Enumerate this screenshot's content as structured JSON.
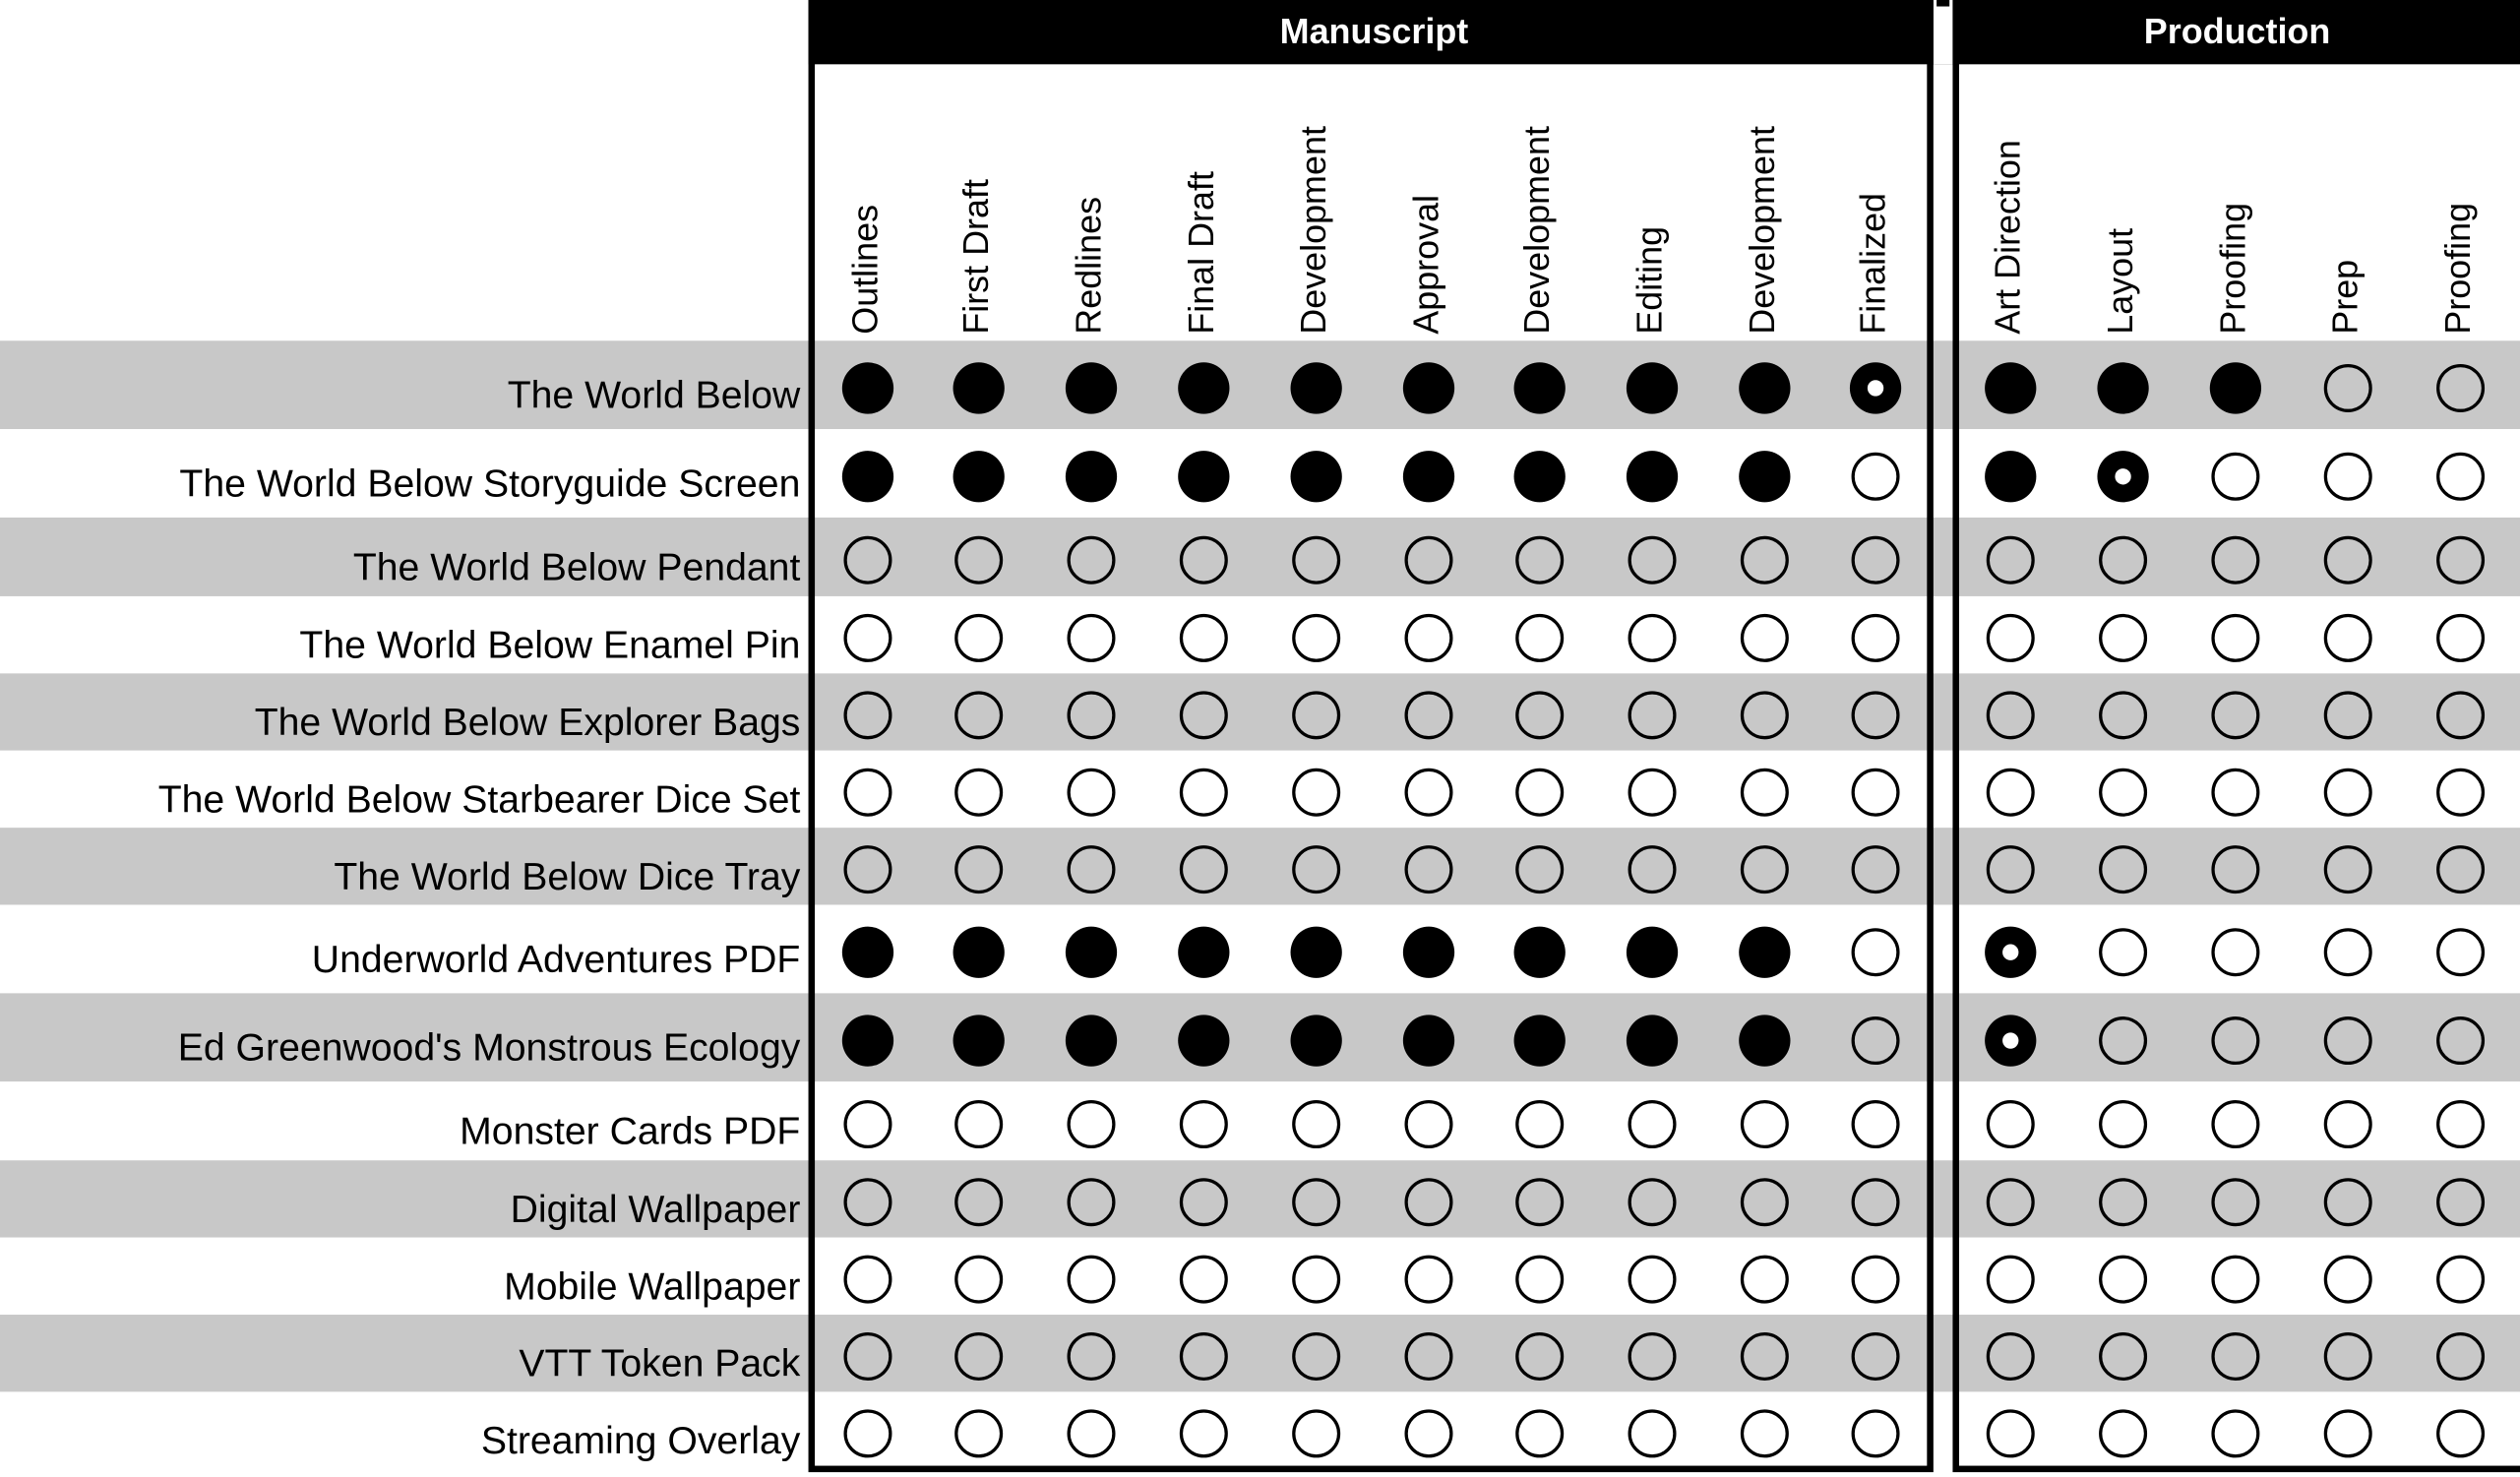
{
  "groups": [
    {
      "title": "Manuscript",
      "columns": [
        "Outlines",
        "First Draft",
        "Redlines",
        "Final Draft",
        "Development",
        "Approval",
        "Development",
        "Editing",
        "Development",
        "Finalized"
      ]
    },
    {
      "title": "Production",
      "columns": [
        "Art Direction",
        "Layout",
        "Proofing",
        "Prep",
        "Proofing"
      ]
    }
  ],
  "rows": [
    {
      "name": "The World Below",
      "status": [
        [
          "●",
          "●",
          "●",
          "●",
          "●",
          "●",
          "●",
          "●",
          "●",
          "◉"
        ],
        [
          "●",
          "●",
          "●",
          "○",
          "○"
        ]
      ]
    },
    {
      "name": "The World Below Storyguide Screen",
      "status": [
        [
          "●",
          "●",
          "●",
          "●",
          "●",
          "●",
          "●",
          "●",
          "●",
          "○"
        ],
        [
          "●",
          "◉",
          "○",
          "○",
          "○"
        ]
      ]
    },
    {
      "name": "The World Below Pendant",
      "status": [
        [
          "○",
          "○",
          "○",
          "○",
          "○",
          "○",
          "○",
          "○",
          "○",
          "○"
        ],
        [
          "○",
          "○",
          "○",
          "○",
          "○"
        ]
      ]
    },
    {
      "name": "The World Below Enamel Pin",
      "status": [
        [
          "○",
          "○",
          "○",
          "○",
          "○",
          "○",
          "○",
          "○",
          "○",
          "○"
        ],
        [
          "○",
          "○",
          "○",
          "○",
          "○"
        ]
      ]
    },
    {
      "name": "The World Below Explorer Bags",
      "status": [
        [
          "○",
          "○",
          "○",
          "○",
          "○",
          "○",
          "○",
          "○",
          "○",
          "○"
        ],
        [
          "○",
          "○",
          "○",
          "○",
          "○"
        ]
      ]
    },
    {
      "name": "The World Below Starbearer Dice Set",
      "status": [
        [
          "○",
          "○",
          "○",
          "○",
          "○",
          "○",
          "○",
          "○",
          "○",
          "○"
        ],
        [
          "○",
          "○",
          "○",
          "○",
          "○"
        ]
      ]
    },
    {
      "name": "The World Below Dice Tray",
      "status": [
        [
          "○",
          "○",
          "○",
          "○",
          "○",
          "○",
          "○",
          "○",
          "○",
          "○"
        ],
        [
          "○",
          "○",
          "○",
          "○",
          "○"
        ]
      ]
    },
    {
      "name": "Underworld Adventures PDF",
      "status": [
        [
          "●",
          "●",
          "●",
          "●",
          "●",
          "●",
          "●",
          "●",
          "●",
          "○"
        ],
        [
          "◉",
          "○",
          "○",
          "○",
          "○"
        ]
      ]
    },
    {
      "name": "Ed Greenwood's Monstrous Ecology",
      "status": [
        [
          "●",
          "●",
          "●",
          "●",
          "●",
          "●",
          "●",
          "●",
          "●",
          "○"
        ],
        [
          "◉",
          "○",
          "○",
          "○",
          "○"
        ]
      ]
    },
    {
      "name": "Monster Cards PDF",
      "status": [
        [
          "○",
          "○",
          "○",
          "○",
          "○",
          "○",
          "○",
          "○",
          "○",
          "○"
        ],
        [
          "○",
          "○",
          "○",
          "○",
          "○"
        ]
      ]
    },
    {
      "name": "Digital Wallpaper",
      "status": [
        [
          "○",
          "○",
          "○",
          "○",
          "○",
          "○",
          "○",
          "○",
          "○",
          "○"
        ],
        [
          "○",
          "○",
          "○",
          "○",
          "○"
        ]
      ]
    },
    {
      "name": "Mobile Wallpaper",
      "status": [
        [
          "○",
          "○",
          "○",
          "○",
          "○",
          "○",
          "○",
          "○",
          "○",
          "○"
        ],
        [
          "○",
          "○",
          "○",
          "○",
          "○"
        ]
      ]
    },
    {
      "name": "VTT Token Pack",
      "status": [
        [
          "○",
          "○",
          "○",
          "○",
          "○",
          "○",
          "○",
          "○",
          "○",
          "○"
        ],
        [
          "○",
          "○",
          "○",
          "○",
          "○"
        ]
      ]
    },
    {
      "name": "Streaming Overlay",
      "status": [
        [
          "○",
          "○",
          "○",
          "○",
          "○",
          "○",
          "○",
          "○",
          "○",
          "○"
        ],
        [
          "○",
          "○",
          "○",
          "○",
          "○"
        ]
      ]
    }
  ]
}
